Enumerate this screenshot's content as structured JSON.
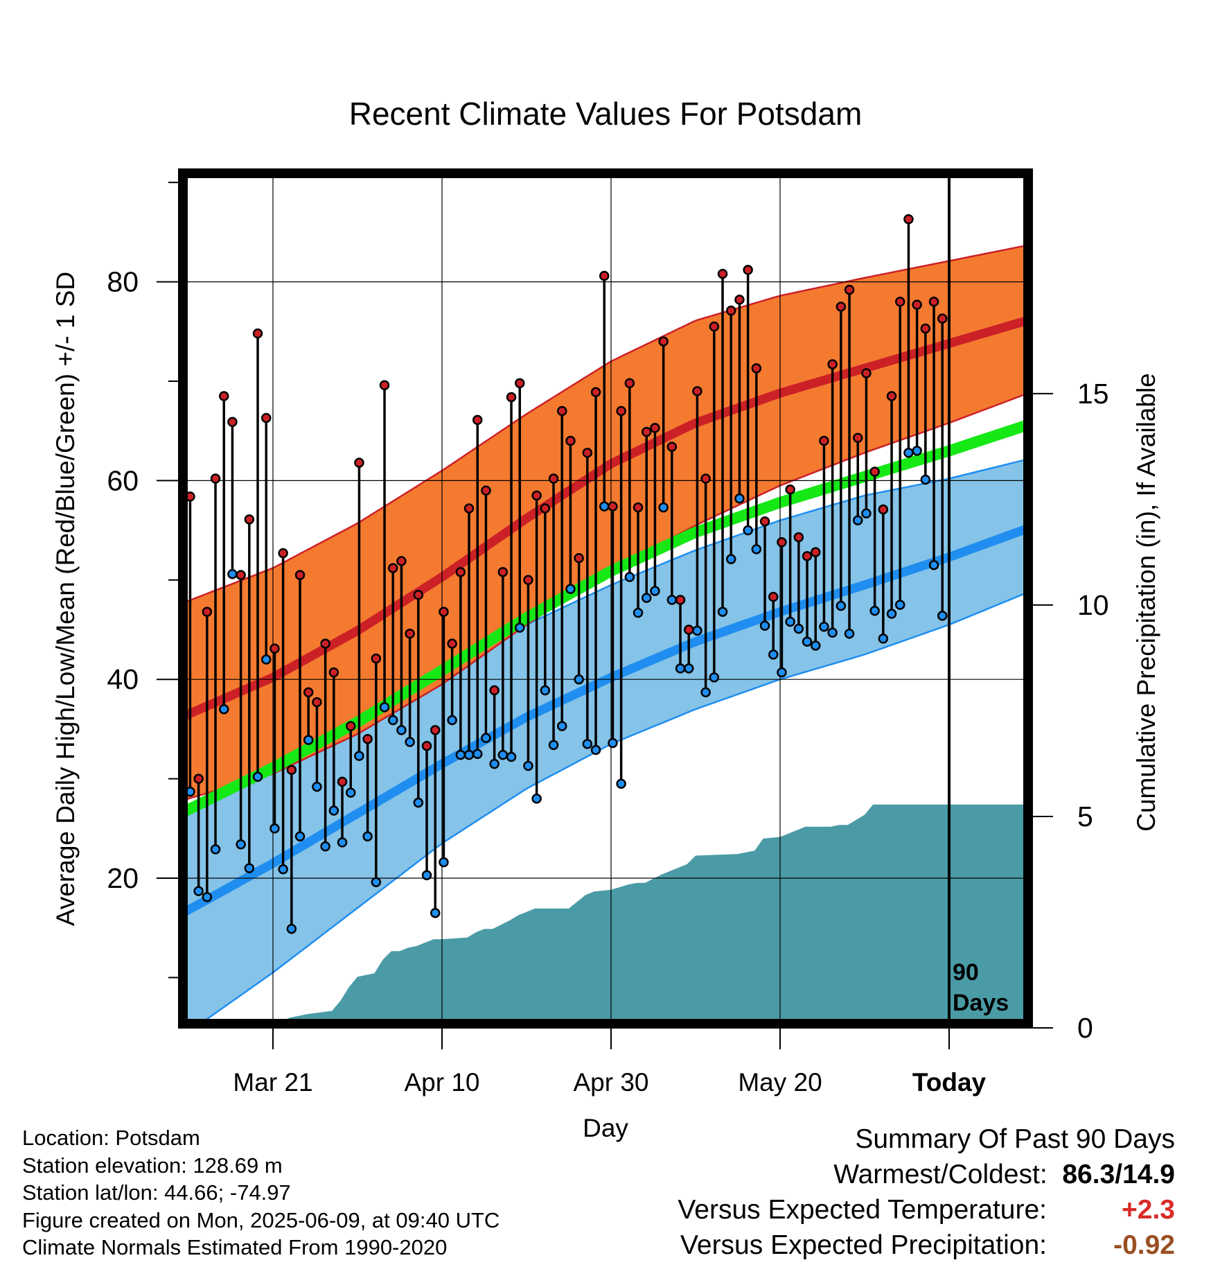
{
  "title": "Recent Climate Values For Potsdam",
  "chart_data": {
    "type": "line",
    "title": "Recent Climate Values For Potsdam",
    "xlabel": "Day",
    "ylabel": "Average Daily High/Low/Mean (Red/Blue/Green) +/- 1 SD",
    "ylabel_right": "Cumulative Precipitation (in), If Available",
    "x_ticks": [
      {
        "day": 10,
        "label": "Mar 21"
      },
      {
        "day": 30,
        "label": "Apr 10"
      },
      {
        "day": 50,
        "label": "Apr 30"
      },
      {
        "day": 70,
        "label": "May 20"
      },
      {
        "day": 90,
        "label": "Today"
      }
    ],
    "xlim": [
      0,
      100
    ],
    "ylim": [
      5,
      92
    ],
    "y_ticks": [
      20,
      40,
      60,
      80
    ],
    "y2_ticks": [
      0,
      5,
      10,
      15
    ],
    "y2lim": [
      0,
      48
    ],
    "today_marker": {
      "day": 90,
      "label": "90 Days"
    },
    "grid": true,
    "colors": {
      "high_band": "#f47a30",
      "high_mean": "#cc2027",
      "low_band": "#85c3e8",
      "low_mean": "#1f8ef0",
      "mean_normal": "#15e815",
      "precip": "#4a9ba6",
      "high_dot": "#cc2027",
      "low_dot": "#1f8ef0"
    },
    "normals": {
      "days": [
        0,
        10,
        20,
        30,
        40,
        50,
        60,
        70,
        80,
        90,
        100
      ],
      "high_mean": [
        36.5,
        40.2,
        44.9,
        50.3,
        56.2,
        61.7,
        65.8,
        68.8,
        71.3,
        73.8,
        76.3
      ],
      "high_upper": [
        47.9,
        51.2,
        55.7,
        61.0,
        66.7,
        72.0,
        76.1,
        78.6,
        80.4,
        82.1,
        83.8
      ],
      "high_lower": [
        28.0,
        30.5,
        34.5,
        39.5,
        45.5,
        51.0,
        55.5,
        59.5,
        62.8,
        65.8,
        69.0
      ],
      "low_mean": [
        16.8,
        21.5,
        26.5,
        31.5,
        36.2,
        40.2,
        43.8,
        46.8,
        49.5,
        52.3,
        55.4
      ],
      "low_upper": [
        26.4,
        31.5,
        36.0,
        40.5,
        45.5,
        49.5,
        53.0,
        56.0,
        58.5,
        60.2,
        62.3
      ],
      "low_lower": [
        4.5,
        10.5,
        17.0,
        23.5,
        29.0,
        33.5,
        37.0,
        40.0,
        42.5,
        45.5,
        49.0
      ],
      "mean": [
        26.9,
        31.1,
        35.7,
        40.9,
        46.2,
        50.9,
        54.8,
        57.8,
        60.4,
        63.0,
        65.8
      ]
    },
    "daily_high": [
      58.4,
      30.0,
      46.8,
      60.2,
      68.5,
      65.9,
      50.5,
      56.1,
      74.8,
      66.3,
      43.1,
      52.7,
      30.9,
      50.5,
      38.7,
      37.7,
      43.6,
      40.7,
      29.7,
      35.3,
      61.8,
      34.0,
      42.1,
      69.6,
      51.2,
      51.9,
      44.6,
      48.5,
      33.3,
      34.9,
      46.8,
      43.6,
      50.8,
      57.2,
      66.1,
      59.0,
      38.9,
      50.8,
      68.4,
      69.8,
      50.0,
      58.5,
      57.2,
      60.2,
      67.0,
      64.0,
      52.2,
      62.8,
      68.9,
      80.6,
      57.4,
      67.0,
      69.8,
      57.3,
      64.9,
      65.3,
      74.0,
      63.4,
      48.0,
      45.0,
      69.0,
      60.2,
      75.5,
      80.8,
      77.1,
      78.2,
      81.2,
      71.3,
      55.9,
      48.3,
      53.8,
      59.1,
      54.3,
      52.4,
      52.8,
      64.0,
      71.7,
      77.5,
      79.2,
      64.3,
      70.8,
      60.9,
      57.1,
      68.5,
      78.0,
      86.3,
      77.7,
      75.3,
      78.0,
      76.3
    ],
    "daily_low": [
      28.7,
      18.7,
      18.1,
      22.9,
      37.0,
      50.6,
      23.4,
      21.0,
      30.2,
      42.0,
      25.0,
      20.9,
      14.9,
      24.2,
      33.9,
      29.2,
      23.2,
      26.8,
      23.6,
      28.6,
      32.3,
      24.2,
      19.6,
      37.2,
      35.9,
      34.9,
      33.7,
      27.6,
      20.3,
      16.5,
      21.6,
      35.9,
      32.4,
      32.4,
      32.5,
      34.1,
      31.5,
      32.4,
      32.2,
      45.2,
      31.3,
      28.0,
      38.9,
      33.4,
      35.3,
      49.1,
      40.0,
      33.5,
      32.9,
      57.4,
      33.6,
      29.5,
      50.3,
      46.7,
      48.2,
      48.9,
      57.3,
      48.0,
      41.1,
      41.1,
      44.9,
      38.7,
      40.2,
      46.8,
      52.1,
      58.2,
      55.0,
      53.1,
      45.4,
      42.5,
      40.7,
      45.8,
      45.1,
      43.8,
      43.4,
      45.3,
      44.7,
      47.4,
      44.6,
      56.0,
      56.7,
      46.9,
      44.1,
      46.6,
      47.5,
      62.8,
      63.0,
      60.1,
      51.5,
      46.4
    ],
    "precip_cumulative": [
      [
        0,
        0
      ],
      [
        5,
        0
      ],
      [
        10,
        0.2
      ],
      [
        12,
        0.6
      ],
      [
        14,
        0.8
      ],
      [
        17,
        1.0
      ],
      [
        18,
        1.6
      ],
      [
        19,
        2.4
      ],
      [
        20,
        3.0
      ],
      [
        22,
        3.2
      ],
      [
        23,
        4.0
      ],
      [
        24,
        4.5
      ],
      [
        25,
        4.5
      ],
      [
        26,
        4.7
      ],
      [
        27,
        4.8
      ],
      [
        28,
        5.0
      ],
      [
        29,
        5.2
      ],
      [
        30,
        5.2
      ],
      [
        33,
        5.3
      ],
      [
        34,
        5.6
      ],
      [
        35,
        5.8
      ],
      [
        36,
        5.8
      ],
      [
        38,
        6.3
      ],
      [
        39,
        6.6
      ],
      [
        41,
        7.0
      ],
      [
        45,
        7.0
      ],
      [
        47,
        7.8
      ],
      [
        48,
        8.0
      ],
      [
        50,
        8.1
      ],
      [
        52,
        8.4
      ],
      [
        53,
        8.5
      ],
      [
        54,
        8.5
      ],
      [
        56,
        9.0
      ],
      [
        58,
        9.4
      ],
      [
        59,
        9.6
      ],
      [
        60,
        10.1
      ],
      [
        65,
        10.2
      ],
      [
        66,
        10.3
      ],
      [
        67,
        10.4
      ],
      [
        68,
        11.1
      ],
      [
        70,
        11.2
      ],
      [
        71,
        11.4
      ],
      [
        72,
        11.6
      ],
      [
        73,
        11.8
      ],
      [
        74,
        11.8
      ],
      [
        76,
        11.8
      ],
      [
        77,
        11.9
      ],
      [
        78,
        11.9
      ],
      [
        80,
        12.5
      ],
      [
        81,
        13.1
      ],
      [
        90,
        13.1
      ],
      [
        99.3,
        13.1
      ]
    ]
  },
  "info": {
    "location": "Location: Potsdam",
    "elevation": "Station elevation: 128.69 m",
    "latlon": "Station lat/lon: 44.66; -74.97",
    "created": "Figure created on Mon, 2025-06-09, at 09:40 UTC",
    "normals": "Climate Normals Estimated From 1990-2020"
  },
  "summary": {
    "heading": "Summary Of Past 90 Days",
    "warm_cold_label": "Warmest/Coldest:",
    "warm_cold_value": "86.3/14.9",
    "temp_label": "Versus Expected Temperature:",
    "temp_value": "+2.3",
    "temp_color": "#d72b27",
    "precip_label": "Versus Expected Precipitation:",
    "precip_value": "-0.92",
    "precip_color": "#9a4f22"
  }
}
